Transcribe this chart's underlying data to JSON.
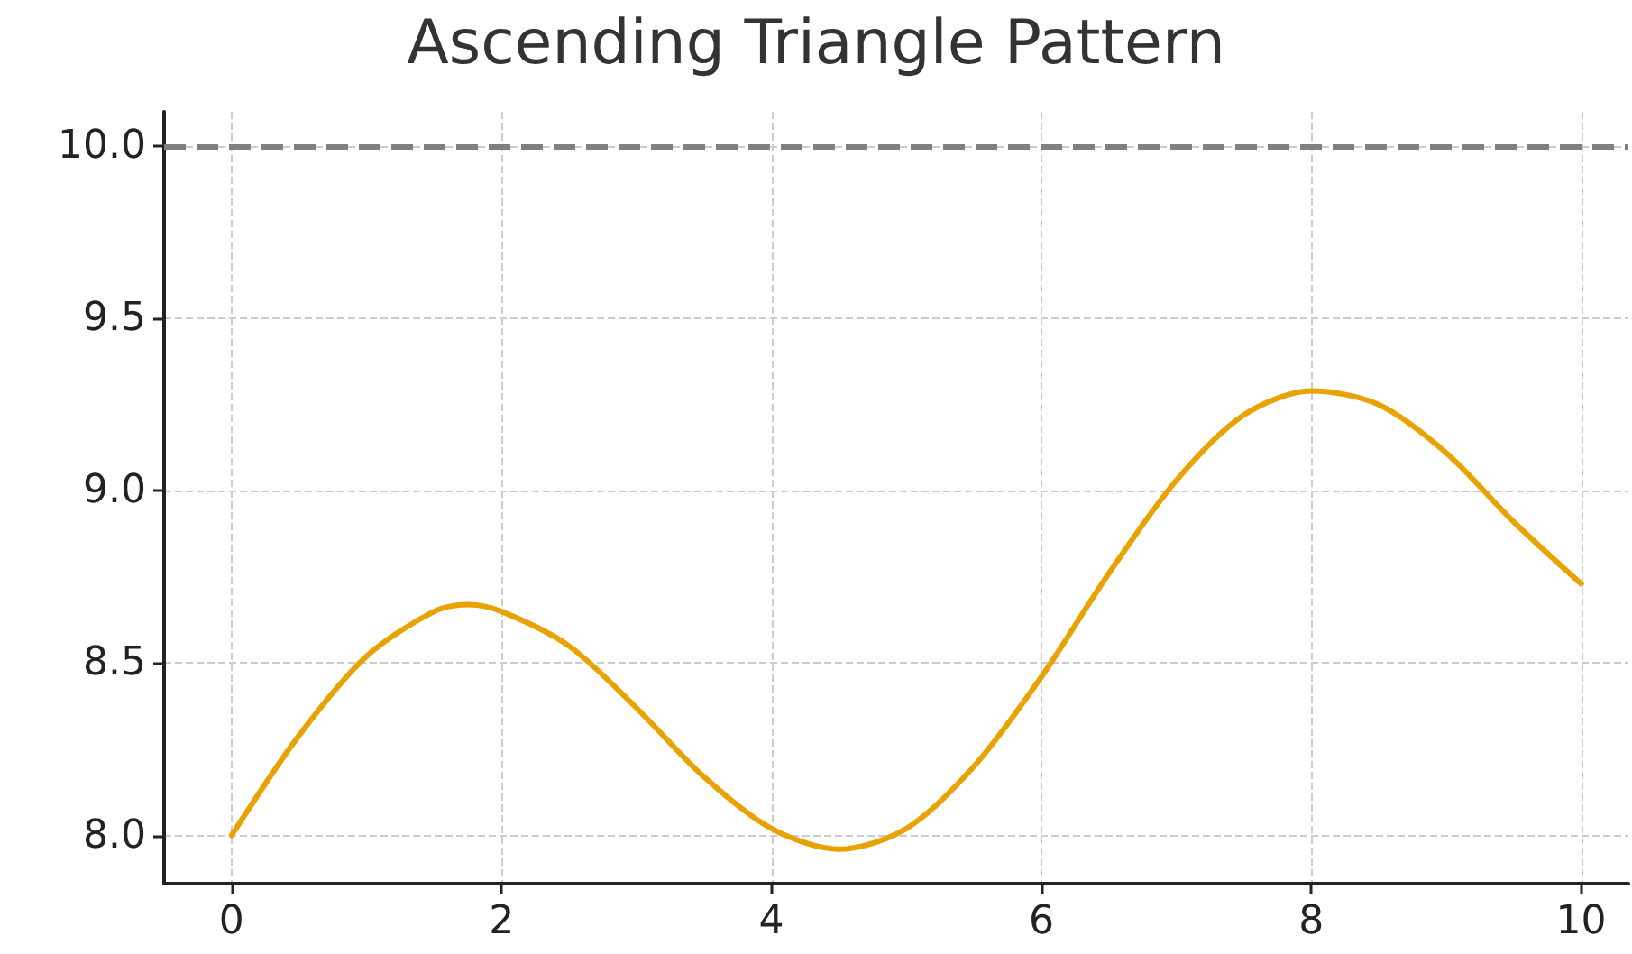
{
  "chart_data": {
    "type": "line",
    "title": "Ascending Triangle Pattern",
    "x": [
      0,
      0.5,
      1,
      1.5,
      1.75,
      2,
      2.5,
      3,
      3.5,
      4,
      4.5,
      5,
      5.5,
      6,
      6.5,
      7,
      7.5,
      8,
      8.5,
      9,
      9.5,
      10
    ],
    "series": [
      {
        "color": "#e8a202",
        "values": [
          8.0,
          8.29,
          8.52,
          8.65,
          8.67,
          8.65,
          8.55,
          8.37,
          8.17,
          8.02,
          7.96,
          8.02,
          8.2,
          8.46,
          8.76,
          9.03,
          9.22,
          9.29,
          9.25,
          9.11,
          8.91,
          8.73
        ]
      }
    ],
    "xlim": [
      -0.5,
      10.35
    ],
    "ylim": [
      7.86,
      10.1
    ],
    "xticks": [
      0,
      2,
      4,
      6,
      8,
      10
    ],
    "yticks": [
      {
        "value": 8,
        "label": "8.0"
      },
      {
        "value": 8.5,
        "label": "8.5"
      },
      {
        "value": 9,
        "label": "9.0"
      },
      {
        "value": 9.5,
        "label": "9.5"
      },
      {
        "value": 10,
        "label": "10.0"
      }
    ],
    "ref_lines": [
      {
        "axis": "y",
        "value": 10,
        "label": null,
        "color": "#808080",
        "line_style": "dashed"
      }
    ],
    "grid": true,
    "marker": "none",
    "line_style": "solid"
  }
}
